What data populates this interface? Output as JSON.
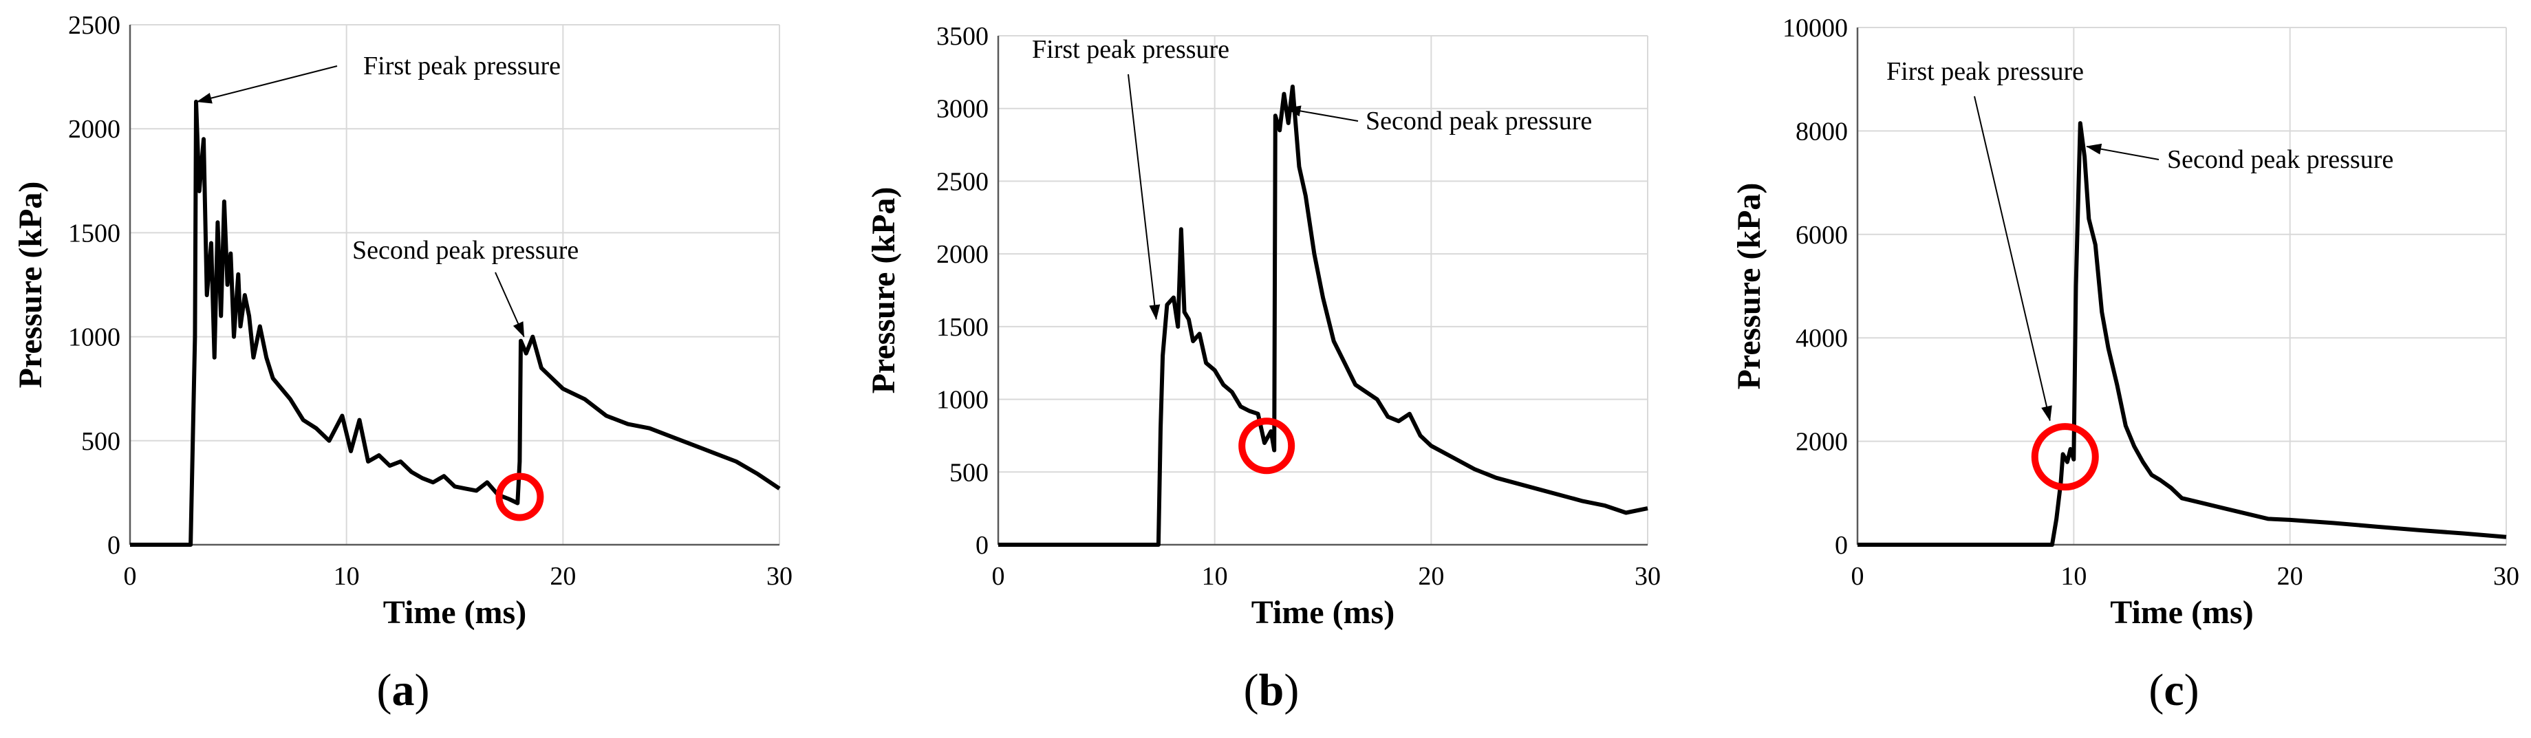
{
  "chart_data": [
    {
      "type": "line",
      "panel_label": "a",
      "xlabel": "Time (ms)",
      "ylabel": "Pressure (kPa)",
      "xlim": [
        0,
        30
      ],
      "ylim": [
        0,
        2500
      ],
      "xticks": [
        0,
        10,
        20,
        30
      ],
      "yticks": [
        0,
        500,
        1000,
        1500,
        2000,
        2500
      ],
      "grid": true,
      "series": [
        {
          "name": "Pressure",
          "x": [
            0,
            2.8,
            3.0,
            3.05,
            3.2,
            3.4,
            3.55,
            3.75,
            3.9,
            4.05,
            4.2,
            4.35,
            4.5,
            4.65,
            4.8,
            5.0,
            5.1,
            5.3,
            5.5,
            5.7,
            6.0,
            6.3,
            6.6,
            7.0,
            7.4,
            8.0,
            8.6,
            9.2,
            9.8,
            10.2,
            10.6,
            11.0,
            11.5,
            12.0,
            12.5,
            13.0,
            13.5,
            14.0,
            14.5,
            15.0,
            15.5,
            16.0,
            16.5,
            17.0,
            17.5,
            17.9,
            18.0,
            18.05,
            18.3,
            18.6,
            19.0,
            19.5,
            20.0,
            21.0,
            22.0,
            23.0,
            24.0,
            25.0,
            26.0,
            27.0,
            28.0,
            29.0,
            30.0
          ],
          "y": [
            0,
            0,
            1000,
            2130,
            1700,
            1950,
            1200,
            1450,
            900,
            1550,
            1100,
            1650,
            1250,
            1400,
            1000,
            1300,
            1050,
            1200,
            1100,
            900,
            1050,
            900,
            800,
            750,
            700,
            600,
            560,
            500,
            620,
            450,
            600,
            400,
            430,
            380,
            400,
            350,
            320,
            300,
            330,
            280,
            270,
            260,
            300,
            240,
            220,
            200,
            400,
            980,
            920,
            1000,
            850,
            800,
            750,
            700,
            620,
            580,
            560,
            520,
            480,
            440,
            400,
            340,
            270
          ]
        }
      ],
      "annotations": [
        {
          "text": "First peak pressure",
          "target": [
            3.1,
            2130
          ]
        },
        {
          "text": "Second peak pressure",
          "target": [
            18.2,
            1000
          ]
        }
      ],
      "highlight": {
        "x": 18.0,
        "y": 230,
        "shape": "circle",
        "color": "#ff0000"
      }
    },
    {
      "type": "line",
      "panel_label": "b",
      "xlabel": "Time (ms)",
      "ylabel": "Pressure (kPa)",
      "xlim": [
        0,
        30
      ],
      "ylim": [
        0,
        3500
      ],
      "xticks": [
        0,
        10,
        20,
        30
      ],
      "yticks": [
        0,
        500,
        1000,
        1500,
        2000,
        2500,
        3000,
        3500
      ],
      "grid": true,
      "series": [
        {
          "name": "Pressure",
          "x": [
            0,
            7.4,
            7.5,
            7.6,
            7.8,
            8.1,
            8.3,
            8.45,
            8.6,
            8.8,
            9.0,
            9.3,
            9.6,
            10.0,
            10.4,
            10.8,
            11.2,
            11.6,
            12.0,
            12.3,
            12.6,
            12.75,
            12.8,
            13.0,
            13.2,
            13.4,
            13.6,
            13.9,
            14.2,
            14.6,
            15.0,
            15.5,
            16.0,
            16.5,
            17.0,
            17.5,
            18.0,
            18.5,
            19.0,
            19.5,
            20.0,
            21.0,
            22.0,
            23.0,
            24.0,
            25.0,
            26.0,
            27.0,
            28.0,
            29.0,
            30.0
          ],
          "y": [
            0,
            0,
            800,
            1300,
            1650,
            1700,
            1500,
            2170,
            1600,
            1550,
            1400,
            1450,
            1250,
            1200,
            1100,
            1050,
            950,
            920,
            900,
            700,
            780,
            650,
            2950,
            2850,
            3100,
            2900,
            3150,
            2600,
            2400,
            2000,
            1700,
            1400,
            1250,
            1100,
            1050,
            1000,
            880,
            850,
            900,
            750,
            680,
            600,
            520,
            460,
            420,
            380,
            340,
            300,
            270,
            220,
            250
          ]
        }
      ],
      "annotations": [
        {
          "text": "First peak pressure",
          "target": [
            7.3,
            1550
          ]
        },
        {
          "text": "Second peak pressure",
          "target": [
            13.3,
            3000
          ]
        }
      ],
      "highlight": {
        "x": 12.4,
        "y": 680,
        "shape": "circle",
        "color": "#ff0000"
      }
    },
    {
      "type": "line",
      "panel_label": "c",
      "xlabel": "Time (ms)",
      "ylabel": "Pressure (kPa)",
      "xlim": [
        0,
        30
      ],
      "ylim": [
        0,
        10000
      ],
      "xticks": [
        0,
        10,
        20,
        30
      ],
      "yticks": [
        0,
        2000,
        4000,
        6000,
        8000,
        10000
      ],
      "grid": true,
      "series": [
        {
          "name": "Pressure",
          "x": [
            0,
            9.0,
            9.2,
            9.4,
            9.5,
            9.7,
            9.85,
            10.0,
            10.1,
            10.3,
            10.5,
            10.7,
            11.0,
            11.3,
            11.6,
            12.0,
            12.4,
            12.8,
            13.2,
            13.6,
            14.0,
            14.5,
            15.0,
            16.0,
            17.0,
            18.0,
            19.0,
            20.0,
            22.0,
            24.0,
            26.0,
            28.0,
            30.0
          ],
          "y": [
            0,
            0,
            500,
            1200,
            1750,
            1600,
            1850,
            1650,
            5000,
            8150,
            7500,
            6300,
            5800,
            4500,
            3800,
            3100,
            2300,
            1900,
            1600,
            1350,
            1250,
            1100,
            900,
            800,
            700,
            600,
            500,
            480,
            420,
            350,
            280,
            220,
            150
          ]
        }
      ],
      "annotations": [
        {
          "text": "First peak pressure",
          "target": [
            8.9,
            2400
          ]
        },
        {
          "text": "Second peak pressure",
          "target": [
            10.6,
            7700
          ]
        }
      ],
      "highlight": {
        "x": 9.6,
        "y": 1700,
        "shape": "circle",
        "color": "#ff0000"
      }
    }
  ]
}
